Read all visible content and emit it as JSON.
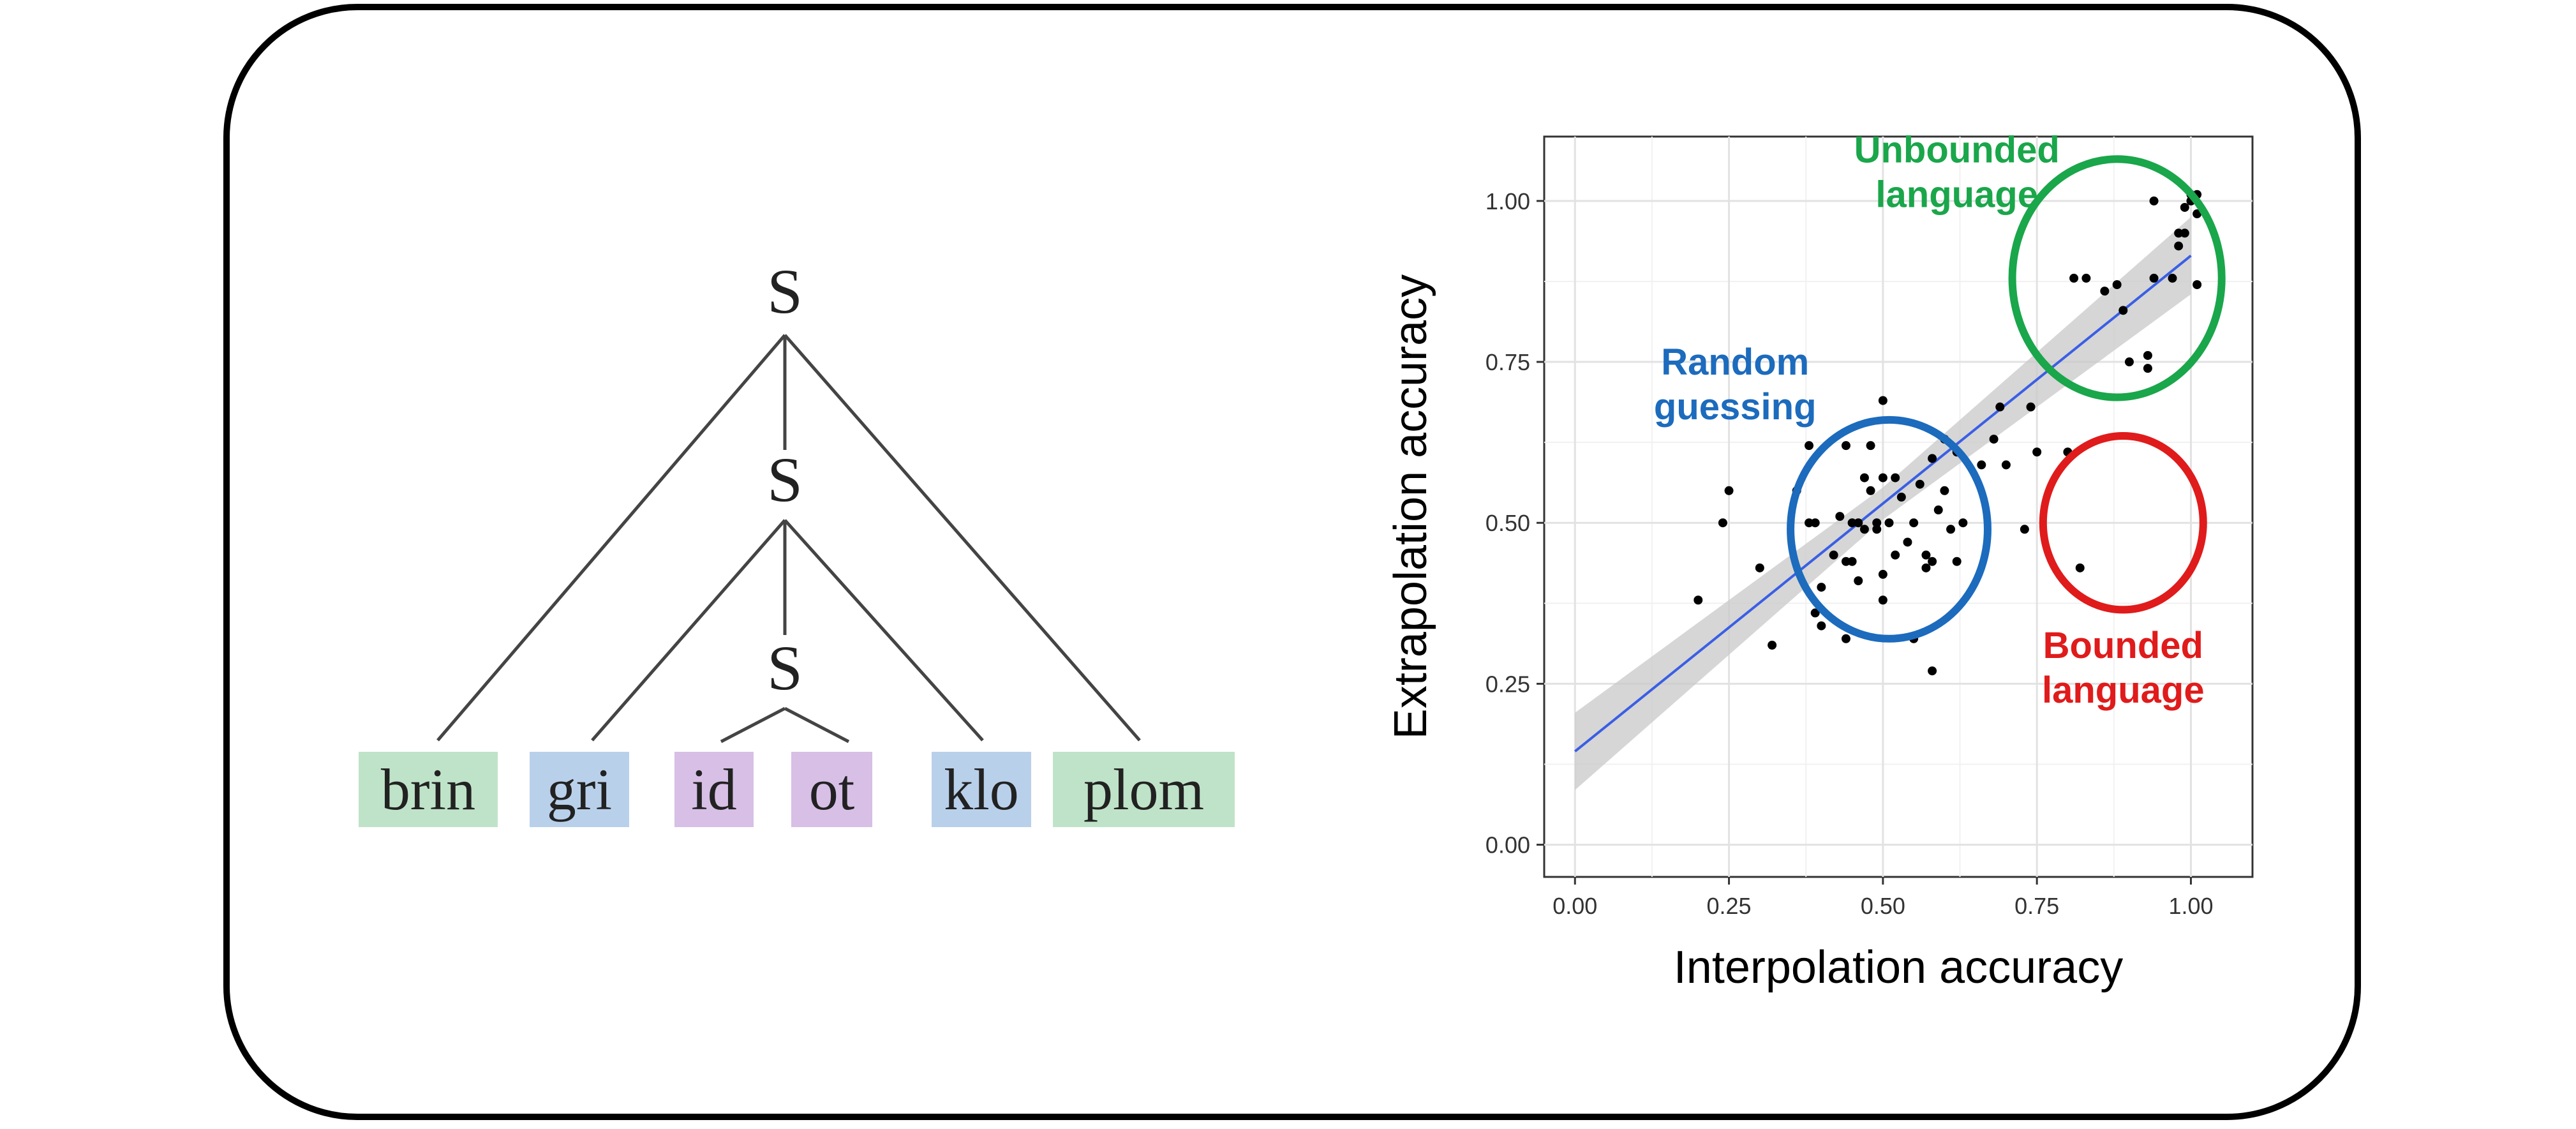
{
  "tree": {
    "nodes": [
      "S",
      "S",
      "S"
    ],
    "words": [
      {
        "text": "brin",
        "group": "outer"
      },
      {
        "text": "gri",
        "group": "middle"
      },
      {
        "text": "id",
        "group": "inner"
      },
      {
        "text": "ot",
        "group": "inner"
      },
      {
        "text": "klo",
        "group": "middle"
      },
      {
        "text": "plom",
        "group": "outer"
      }
    ],
    "colors": {
      "outer": "#bfe3c8",
      "middle": "#b9d0eb",
      "inner": "#d7bfe6"
    }
  },
  "chart_data": {
    "type": "scatter",
    "xlabel": "Interpolation accuracy",
    "ylabel": "Extrapolation accuracy",
    "xlim": [
      -0.05,
      1.1
    ],
    "ylim": [
      -0.05,
      1.1
    ],
    "xticks": [
      0.0,
      0.25,
      0.5,
      0.75,
      1.0
    ],
    "yticks": [
      0.0,
      0.25,
      0.5,
      0.75,
      1.0
    ],
    "xtick_labels": [
      "0.00",
      "0.25",
      "0.50",
      "0.75",
      "1.00"
    ],
    "ytick_labels": [
      "0.00",
      "0.25",
      "0.50",
      "0.75",
      "1.00"
    ],
    "grid": true,
    "points": [
      [
        0.2,
        0.38
      ],
      [
        0.24,
        0.5
      ],
      [
        0.25,
        0.55
      ],
      [
        0.3,
        0.43
      ],
      [
        0.32,
        0.31
      ],
      [
        0.36,
        0.55
      ],
      [
        0.38,
        0.5
      ],
      [
        0.38,
        0.62
      ],
      [
        0.39,
        0.5
      ],
      [
        0.39,
        0.36
      ],
      [
        0.4,
        0.34
      ],
      [
        0.4,
        0.4
      ],
      [
        0.42,
        0.45
      ],
      [
        0.43,
        0.51
      ],
      [
        0.44,
        0.44
      ],
      [
        0.44,
        0.62
      ],
      [
        0.45,
        0.5
      ],
      [
        0.45,
        0.44
      ],
      [
        0.46,
        0.5
      ],
      [
        0.47,
        0.49
      ],
      [
        0.47,
        0.57
      ],
      [
        0.48,
        0.55
      ],
      [
        0.49,
        0.5
      ],
      [
        0.49,
        0.49
      ],
      [
        0.5,
        0.42
      ],
      [
        0.5,
        0.38
      ],
      [
        0.5,
        0.57
      ],
      [
        0.51,
        0.5
      ],
      [
        0.52,
        0.45
      ],
      [
        0.52,
        0.57
      ],
      [
        0.53,
        0.54
      ],
      [
        0.54,
        0.47
      ],
      [
        0.55,
        0.5
      ],
      [
        0.56,
        0.56
      ],
      [
        0.57,
        0.43
      ],
      [
        0.57,
        0.45
      ],
      [
        0.58,
        0.44
      ],
      [
        0.58,
        0.6
      ],
      [
        0.58,
        0.27
      ],
      [
        0.59,
        0.52
      ],
      [
        0.6,
        0.55
      ],
      [
        0.6,
        0.63
      ],
      [
        0.61,
        0.49
      ],
      [
        0.62,
        0.44
      ],
      [
        0.62,
        0.61
      ],
      [
        0.63,
        0.5
      ],
      [
        0.66,
        0.59
      ],
      [
        0.68,
        0.63
      ],
      [
        0.69,
        0.68
      ],
      [
        0.7,
        0.59
      ],
      [
        0.73,
        0.49
      ],
      [
        0.74,
        0.68
      ],
      [
        0.75,
        0.61
      ],
      [
        0.8,
        0.61
      ],
      [
        0.81,
        0.88
      ],
      [
        0.82,
        0.43
      ],
      [
        0.83,
        0.88
      ],
      [
        0.86,
        0.86
      ],
      [
        0.88,
        0.87
      ],
      [
        0.89,
        0.83
      ],
      [
        0.9,
        0.75
      ],
      [
        0.93,
        0.76
      ],
      [
        0.93,
        0.74
      ],
      [
        0.94,
        0.88
      ],
      [
        0.94,
        1.0
      ],
      [
        0.97,
        0.88
      ],
      [
        0.98,
        0.93
      ],
      [
        0.98,
        0.95
      ],
      [
        0.99,
        0.99
      ],
      [
        0.99,
        0.95
      ],
      [
        1.0,
        1.0
      ],
      [
        1.0,
        1.01
      ],
      [
        1.01,
        1.01
      ],
      [
        1.01,
        0.98
      ],
      [
        1.01,
        0.87
      ],
      [
        0.55,
        0.32
      ],
      [
        0.44,
        0.32
      ],
      [
        0.5,
        0.69
      ],
      [
        0.46,
        0.41
      ],
      [
        0.48,
        0.62
      ]
    ],
    "fit": {
      "x": [
        0.0,
        1.0
      ],
      "y": [
        0.145,
        0.915
      ],
      "color": "#3a5fe5"
    },
    "ribbon": {
      "x": [
        0.0,
        0.5,
        1.0
      ],
      "lower": [
        0.085,
        0.505,
        0.855
      ],
      "upper": [
        0.205,
        0.555,
        0.975
      ],
      "color": "#c8c8c8"
    },
    "annotations": [
      {
        "lines": [
          "Unbounded",
          "language"
        ],
        "color": "#1aa64a",
        "x": 0.62,
        "y": 1.06
      },
      {
        "lines": [
          "Random",
          "guessing"
        ],
        "color": "#1c6bbd",
        "x": 0.26,
        "y": 0.73
      },
      {
        "lines": [
          "Bounded",
          "language"
        ],
        "color": "#e01b1b",
        "x": 0.89,
        "y": 0.29
      }
    ],
    "circles": [
      {
        "name": "unbounded-circle",
        "cx": 0.88,
        "cy": 0.88,
        "rx": 0.17,
        "ry": 0.185,
        "color": "#1aa64a"
      },
      {
        "name": "random-guessing-circle",
        "cx": 0.51,
        "cy": 0.49,
        "rx": 0.16,
        "ry": 0.17,
        "color": "#1c6bbd"
      },
      {
        "name": "bounded-circle",
        "cx": 0.89,
        "cy": 0.5,
        "rx": 0.13,
        "ry": 0.135,
        "color": "#e01b1b"
      }
    ]
  }
}
